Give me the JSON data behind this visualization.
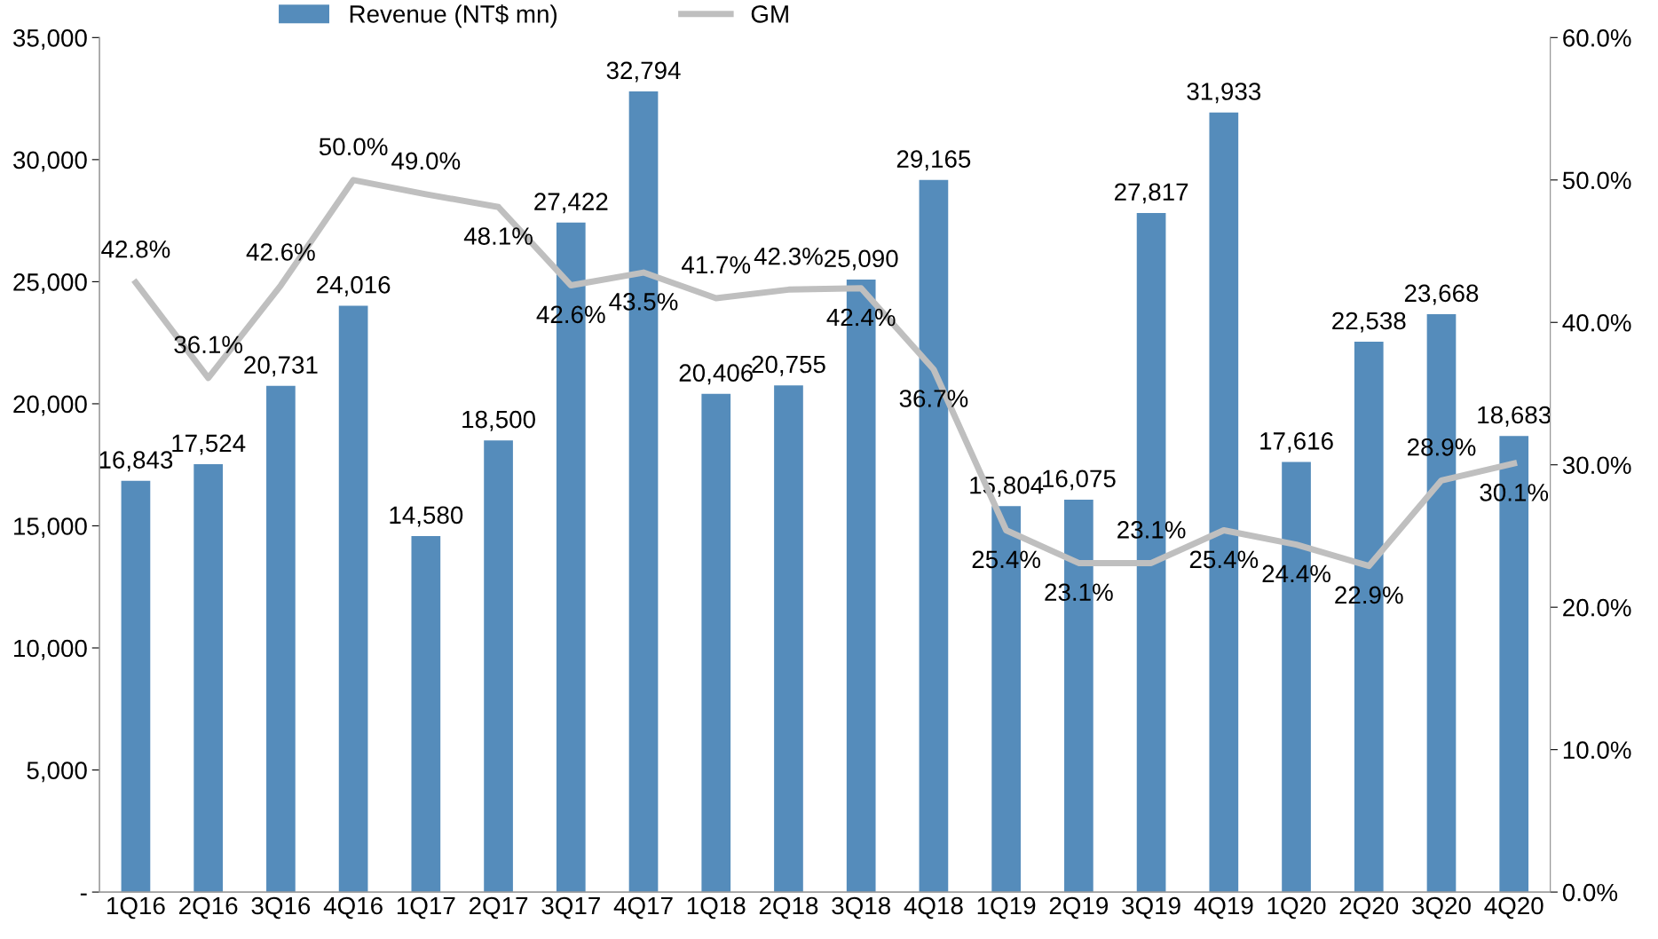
{
  "chart_data": {
    "type": "bar",
    "categories": [
      "1Q16",
      "2Q16",
      "3Q16",
      "4Q16",
      "1Q17",
      "2Q17",
      "3Q17",
      "4Q17",
      "1Q18",
      "2Q18",
      "3Q18",
      "4Q18",
      "1Q19",
      "2Q19",
      "3Q19",
      "4Q19",
      "1Q20",
      "2Q20",
      "3Q20",
      "4Q20"
    ],
    "series": [
      {
        "name": "Revenue (NT$ mn)",
        "color": "#558cbb",
        "values": [
          16843,
          17524,
          20731,
          24016,
          14580,
          18500,
          27422,
          32794,
          20406,
          20755,
          25090,
          29165,
          15804,
          16075,
          27817,
          31933,
          17616,
          22538,
          23668,
          18683
        ],
        "value_labels": [
          "16,843",
          "17,524",
          "20,731",
          "24,016",
          "14,580",
          "18,500",
          "27,422",
          "32,794",
          "20,406",
          "20,755",
          "25,090",
          "29,165",
          "15,804",
          "16,075",
          "27,817",
          "31,933",
          "17,616",
          "22,538",
          "23,668",
          "18,683"
        ]
      },
      {
        "name": "GM",
        "type": "line",
        "axis": "y2",
        "color": "#bfbfbf",
        "values": [
          42.8,
          36.1,
          42.6,
          50.0,
          49.0,
          48.1,
          42.6,
          43.5,
          41.7,
          42.3,
          42.4,
          36.7,
          25.4,
          23.1,
          23.1,
          25.4,
          24.4,
          22.9,
          28.9,
          30.1
        ],
        "value_labels": [
          "42.8%",
          "36.1%",
          "42.6%",
          "50.0%",
          "49.0%",
          "48.1%",
          "42.6%",
          "43.5%",
          "41.7%",
          "42.3%",
          "42.4%",
          "36.7%",
          "25.4%",
          "23.1%",
          "23.1%",
          "25.4%",
          "24.4%",
          "22.9%",
          "28.9%",
          "30.1%"
        ]
      }
    ],
    "ylim": [
      0,
      35000
    ],
    "yticks": [
      {
        "value": 0,
        "label": "-"
      },
      {
        "value": 5000,
        "label": "5,000"
      },
      {
        "value": 10000,
        "label": "10,000"
      },
      {
        "value": 15000,
        "label": "15,000"
      },
      {
        "value": 20000,
        "label": "20,000"
      },
      {
        "value": 25000,
        "label": "25,000"
      },
      {
        "value": 30000,
        "label": "30,000"
      },
      {
        "value": 35000,
        "label": "35,000"
      }
    ],
    "y2lim": [
      0,
      60
    ],
    "y2ticks": [
      {
        "value": 0,
        "label": "0.0%"
      },
      {
        "value": 10,
        "label": "10.0%"
      },
      {
        "value": 20,
        "label": "20.0%"
      },
      {
        "value": 30,
        "label": "30.0%"
      },
      {
        "value": 40,
        "label": "40.0%"
      },
      {
        "value": 50,
        "label": "50.0%"
      },
      {
        "value": 60,
        "label": "60.0%"
      }
    ],
    "legend": "top",
    "grid": false,
    "marker": "none",
    "line_style": "solid"
  }
}
